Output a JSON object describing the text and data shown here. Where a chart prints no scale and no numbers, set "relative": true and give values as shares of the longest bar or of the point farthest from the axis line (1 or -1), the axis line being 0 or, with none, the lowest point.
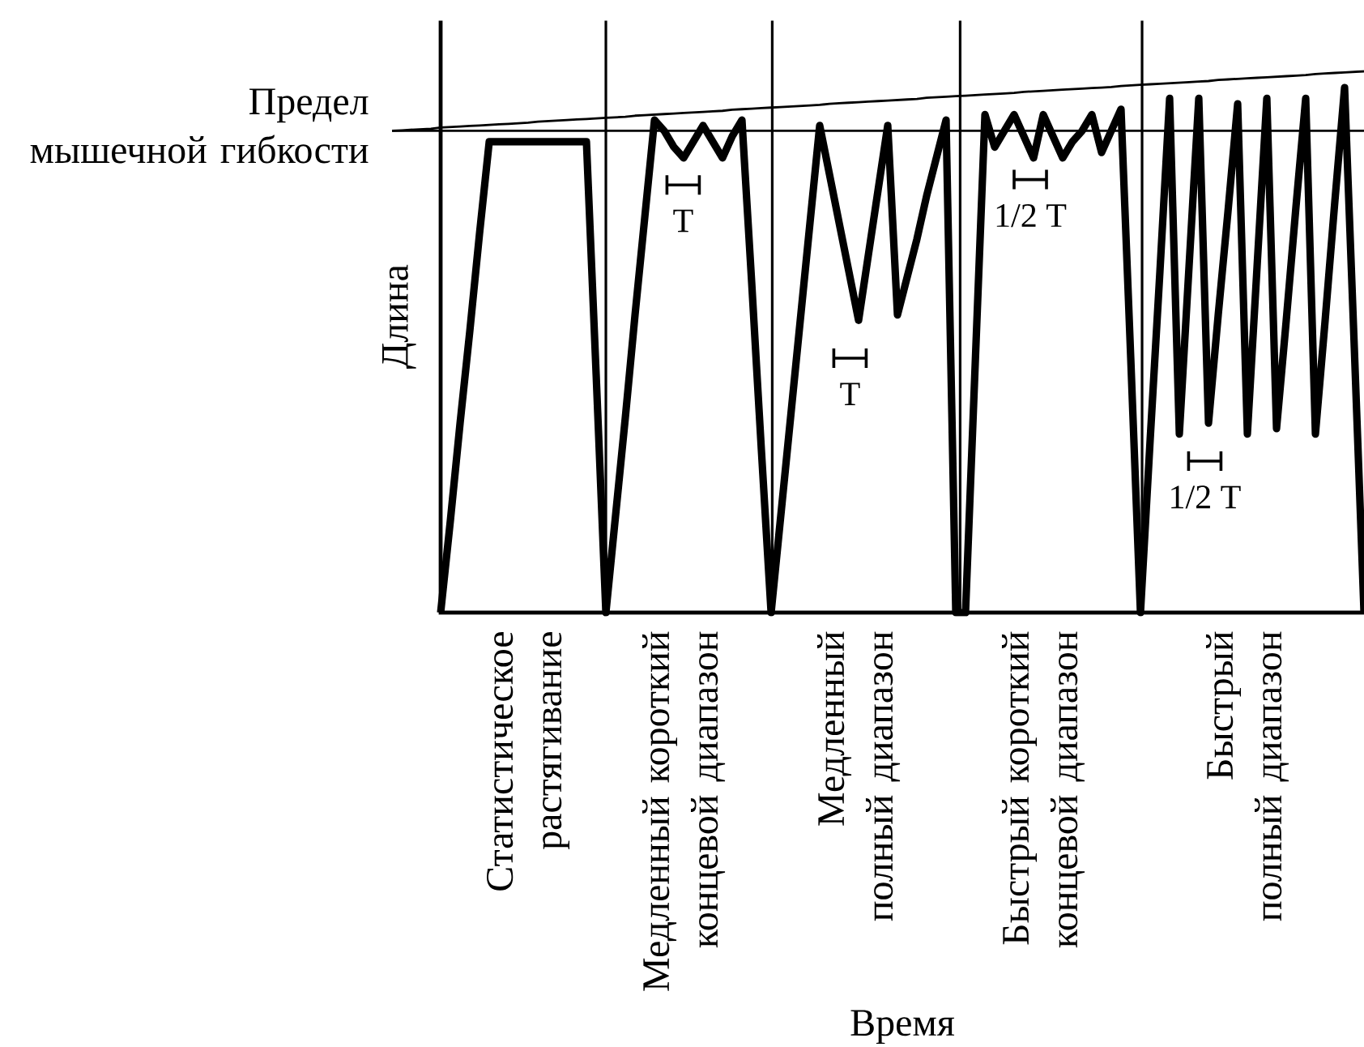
{
  "chart_data": {
    "type": "line",
    "xlabel": "Время",
    "ylabel": "Длина",
    "relative": true,
    "categories": [
      null,
      null,
      null,
      null,
      null,
      null,
      null,
      null,
      null,
      null,
      null,
      null,
      null,
      null,
      "Статистическое\nрастягивание",
      null,
      null,
      null,
      null,
      null,
      null,
      null,
      null,
      null,
      null,
      null,
      null,
      null,
      null,
      null,
      "Медленный короткий\nконцевой диапазон",
      null,
      null,
      null,
      null,
      null,
      null,
      null,
      null,
      null,
      null,
      null,
      null,
      null,
      null,
      null,
      null,
      null,
      "Медленный\nполный диапазон",
      null,
      null,
      null,
      null,
      null,
      null,
      null,
      null,
      null,
      null,
      null,
      null,
      null,
      null,
      null,
      null,
      null,
      null,
      "Быстрый короткий\nконцевой диапазон",
      null,
      null,
      null,
      null,
      null,
      null,
      null,
      null,
      null,
      null,
      null,
      null,
      null,
      null,
      null,
      null,
      null,
      null,
      null,
      null,
      "Быстрый\nполный диапазон",
      null,
      null,
      null,
      null,
      null,
      null,
      null,
      null,
      null,
      null,
      null,
      null
    ],
    "series": [
      {
        "color": "#000000",
        "values": [
          null,
          null,
          null,
          null,
          null,
          0,
          0.17,
          0.35,
          0.52,
          0.7,
          0.87,
          0.87,
          0.87,
          0.87,
          0.87,
          0.87,
          0.87,
          0.87,
          0.87,
          0.87,
          0.87,
          0.44,
          0,
          0.18,
          0.36,
          0.55,
          0.73,
          0.91,
          0.89,
          0.86,
          0.84,
          0.87,
          0.9,
          0.87,
          0.84,
          0.88,
          0.91,
          0.61,
          0.3,
          0,
          0.18,
          0.36,
          0.54,
          0.72,
          0.9,
          0.81,
          0.72,
          0.63,
          0.54,
          0.66,
          0.78,
          0.9,
          0.55,
          0.62,
          0.69,
          0.77,
          0.84,
          0.91,
          0,
          0,
          0.46,
          0.92,
          0.86,
          0.89,
          0.92,
          0.88,
          0.84,
          0.92,
          0.88,
          0.84,
          0.87,
          0.89,
          0.92,
          0.85,
          0.89,
          0.93,
          0.47,
          0,
          0.32,
          0.63,
          0.95,
          0.33,
          0.64,
          0.95,
          0.35,
          0.55,
          0.74,
          0.94,
          0.33,
          0.64,
          0.95,
          0.34,
          0.54,
          0.75,
          0.95,
          0.33,
          0.54,
          0.76,
          0.97,
          0.49,
          0
        ]
      },
      {
        "color": "#000000",
        "values": [
          0.89,
          0.891,
          0.892,
          0.893,
          0.894,
          0.896,
          0.897,
          0.898,
          0.899,
          0.9,
          0.901,
          0.902,
          0.903,
          0.904,
          0.905,
          0.907,
          0.908,
          0.909,
          0.91,
          0.911,
          0.912,
          0.913,
          0.914,
          0.915,
          0.916,
          0.918,
          0.919,
          0.92,
          0.921,
          0.922,
          0.923,
          0.924,
          0.925,
          0.926,
          0.927,
          0.929,
          0.93,
          0.931,
          0.932,
          0.933,
          0.934,
          0.935,
          0.936,
          0.937,
          0.938,
          0.94,
          0.941,
          0.942,
          0.943,
          0.944,
          0.945,
          0.946,
          0.947,
          0.948,
          0.949,
          0.951,
          0.952,
          0.953,
          0.954,
          0.955,
          0.956,
          0.957,
          0.958,
          0.959,
          0.96,
          0.962,
          0.963,
          0.964,
          0.965,
          0.966,
          0.967,
          0.968,
          0.969,
          0.97,
          0.971,
          0.973,
          0.974,
          0.975,
          0.976,
          0.977,
          0.978,
          0.979,
          0.98,
          0.981,
          0.982,
          0.984,
          0.985,
          0.986,
          0.987,
          0.988,
          0.989,
          0.99,
          0.991,
          0.992,
          0.993,
          0.995,
          0.996,
          0.997,
          0.998,
          0.999,
          1
        ]
      }
    ],
    "ref_lines": [
      {
        "axis": "y",
        "value": 0.89,
        "label": "Предел\nмышечной гибкости"
      }
    ],
    "annotations": [
      {
        "text": "T",
        "y": 0.79
      },
      {
        "text": "T",
        "y": 0.47
      },
      {
        "text": "1/2 T",
        "y": 0.8
      },
      {
        "text": "1/2 T",
        "y": 0.28
      }
    ]
  }
}
